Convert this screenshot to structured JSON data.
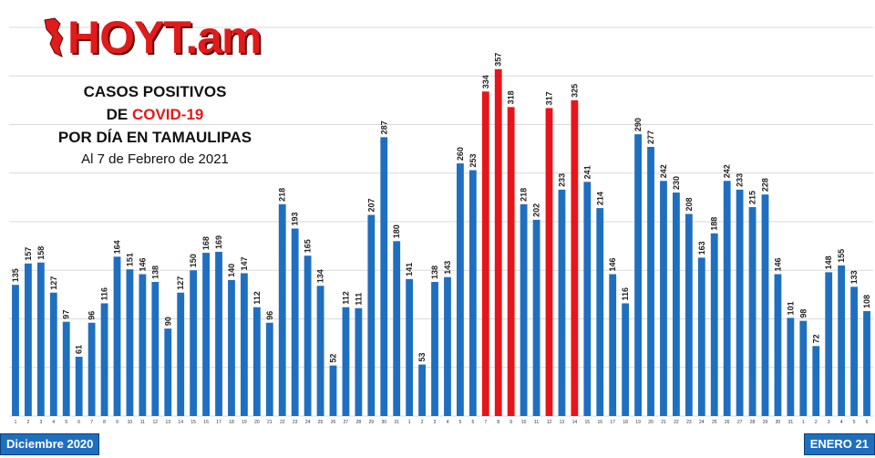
{
  "logo": {
    "text": "HOYT.am"
  },
  "title": {
    "line1": "CASOS POSITIVOS",
    "line2_prefix": "DE ",
    "line2_highlight": "COVID-19",
    "line3": "POR DÍA EN TAMAULIPAS",
    "line4": "Al 7 de Febrero de 2021"
  },
  "periods": {
    "left": "Diciembre 2020",
    "right": "ENERO 21"
  },
  "colors": {
    "bar": "#1f6fc0",
    "highlight": "#e8141b",
    "grid": "#d9d9d9"
  },
  "chart_data": {
    "type": "bar",
    "categories": [
      "1",
      "2",
      "3",
      "4",
      "5",
      "6",
      "7",
      "8",
      "9",
      "10",
      "11",
      "12",
      "13",
      "14",
      "15",
      "16",
      "17",
      "18",
      "19",
      "20",
      "21",
      "22",
      "23",
      "24",
      "25",
      "26",
      "27",
      "28",
      "29",
      "30",
      "31",
      "1",
      "2",
      "3",
      "4",
      "5",
      "6",
      "7",
      "8",
      "9",
      "10",
      "11",
      "12",
      "13",
      "14",
      "15",
      "16",
      "17",
      "18",
      "19",
      "20",
      "21",
      "22",
      "23",
      "24",
      "25",
      "26",
      "27",
      "28",
      "29",
      "30",
      "31",
      "1",
      "2",
      "3",
      "4",
      "5",
      "6"
    ],
    "values": [
      135,
      157,
      158,
      127,
      97,
      61,
      96,
      116,
      164,
      151,
      146,
      138,
      90,
      127,
      150,
      168,
      169,
      140,
      147,
      112,
      96,
      218,
      193,
      165,
      134,
      52,
      112,
      111,
      207,
      287,
      180,
      141,
      53,
      138,
      143,
      260,
      253,
      334,
      357,
      318,
      218,
      202,
      317,
      233,
      325,
      241,
      214,
      146,
      116,
      290,
      277,
      242,
      230,
      208,
      163,
      188,
      242,
      233,
      215,
      228,
      146,
      101,
      98,
      72,
      148,
      155,
      133,
      108
    ],
    "highlight_indices": [
      37,
      38,
      39,
      42,
      44
    ],
    "ylim": [
      0,
      400
    ],
    "grid": true
  }
}
